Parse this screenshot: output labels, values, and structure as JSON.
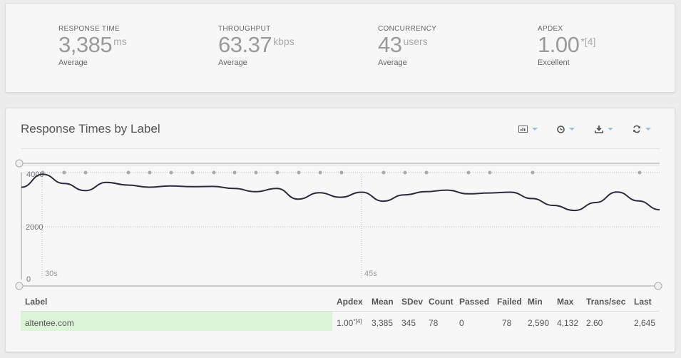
{
  "metrics": [
    {
      "label": "RESPONSE TIME",
      "value": "3,385",
      "unit": "ms",
      "sub": "Average"
    },
    {
      "label": "THROUGHPUT",
      "value": "63.37",
      "unit": "kbps",
      "sub": "Average"
    },
    {
      "label": "CONCURRENCY",
      "value": "43",
      "unit": "users",
      "sub": "Average"
    },
    {
      "label": "APDEX",
      "value": "1.00",
      "unit": "*[4]",
      "sub": "Excellent"
    }
  ],
  "panel": {
    "title": "Response Times by Label",
    "toolbar": [
      {
        "name": "chart-type-icon"
      },
      {
        "name": "clock-icon"
      },
      {
        "name": "download-icon"
      },
      {
        "name": "refresh-icon"
      }
    ]
  },
  "chart_data": {
    "type": "line",
    "y_ticks": [
      "2000",
      "0"
    ],
    "y_top_label": "4000",
    "x_ticks": [
      "30s",
      "45s"
    ],
    "ylim": [
      0,
      4000
    ],
    "series": [
      {
        "values": [
          3500,
          3990,
          3640,
          3370,
          3680,
          3580,
          3500,
          3550,
          3520,
          3530,
          3450,
          3330,
          3450,
          3050,
          3290,
          3120,
          3310,
          2970,
          3210,
          3330,
          3390,
          3250,
          3280,
          3310,
          3070,
          2810,
          2620,
          2920,
          3320,
          2980,
          2645
        ]
      }
    ],
    "marker_dots": 26,
    "color": "#2b2b3e"
  },
  "table": {
    "headers": [
      "Label",
      "Apdex",
      "Mean",
      "SDev",
      "Count",
      "Passed",
      "Failed",
      "Min",
      "Max",
      "Trans/sec",
      "Last"
    ],
    "rows": [
      {
        "label": "altentee.com",
        "apdex": "1.00",
        "apdex_sup": "*[4]",
        "mean": "3,385",
        "sdev": "345",
        "count": "78",
        "passed": "0",
        "failed": "78",
        "min": "2,590",
        "max": "4,132",
        "trans": "2.60",
        "last": "2,645"
      }
    ]
  }
}
